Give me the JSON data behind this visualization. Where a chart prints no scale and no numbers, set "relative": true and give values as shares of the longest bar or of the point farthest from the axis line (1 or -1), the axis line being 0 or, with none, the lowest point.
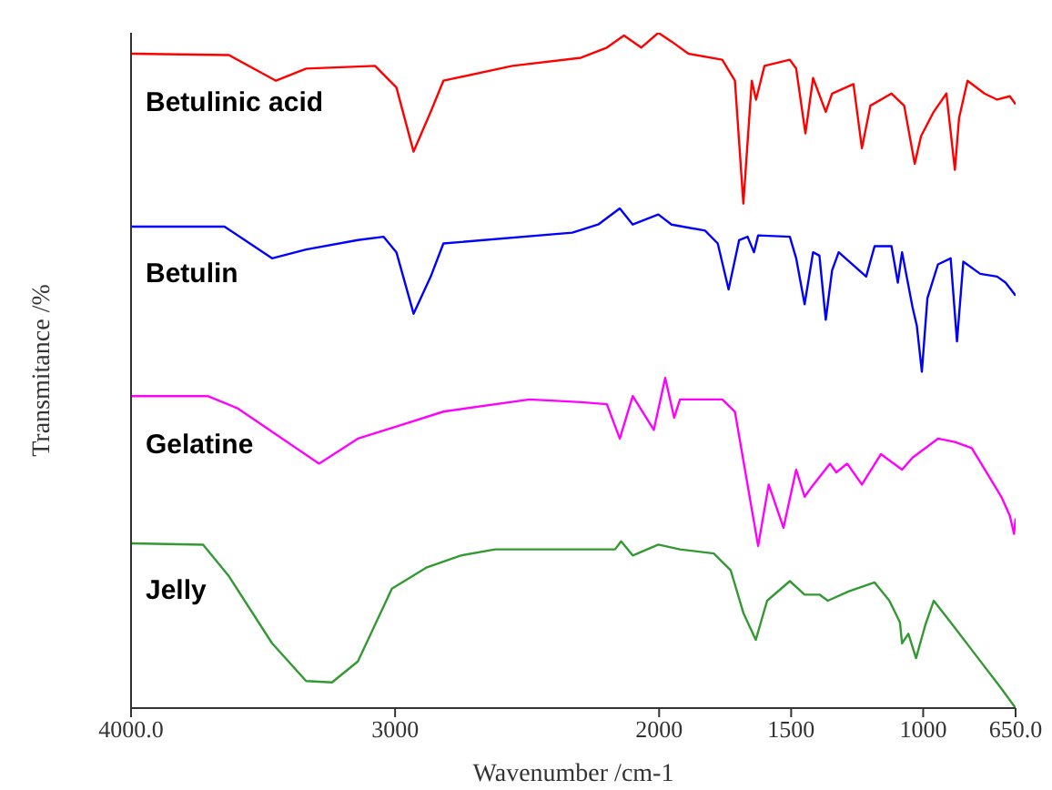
{
  "chart_data": {
    "type": "line",
    "relative": true,
    "xlabel": "Wavenumber /cm-1",
    "ylabel": "Transmitance /%",
    "xlim": [
      4000,
      650
    ],
    "xticks": [
      {
        "value": 4000,
        "label": "4000.0"
      },
      3000,
      2000,
      1500,
      1000,
      {
        "value": 650,
        "label": "650.0"
      }
    ],
    "tick_labels": "x",
    "marker": "none",
    "line_style": "solid",
    "series": [
      {
        "name": "Betulinic acid",
        "color": "#ff0000",
        "x": [
          4000,
          3629,
          3451,
          3337,
          3076,
          2995,
          2930,
          2865,
          2817,
          2556,
          2296,
          2198,
          2133,
          2068,
          2003,
          1953,
          1889,
          1761,
          1713,
          1681,
          1649,
          1633,
          1601,
          1505,
          1481,
          1446,
          1417,
          1369,
          1345,
          1264,
          1232,
          1200,
          1120,
          1072,
          1032,
          1008,
          960,
          912,
          880,
          864,
          832,
          768,
          720,
          672,
          650
        ],
        "values": [
          0.969,
          0.967,
          0.929,
          0.947,
          0.951,
          0.919,
          0.824,
          0.883,
          0.929,
          0.951,
          0.963,
          0.978,
          0.996,
          0.978,
          1.0,
          0.987,
          0.969,
          0.96,
          0.929,
          0.747,
          0.929,
          0.901,
          0.951,
          0.96,
          0.947,
          0.851,
          0.933,
          0.883,
          0.91,
          0.924,
          0.829,
          0.892,
          0.91,
          0.892,
          0.806,
          0.847,
          0.883,
          0.91,
          0.797,
          0.874,
          0.929,
          0.91,
          0.901,
          0.906,
          0.894
        ]
      },
      {
        "name": "Betulin",
        "color": "#0000ff",
        "x": [
          4000,
          3646,
          3466,
          3337,
          3141,
          3044,
          2995,
          2930,
          2865,
          2817,
          2329,
          2231,
          2149,
          2100,
          2003,
          1953,
          1826,
          1778,
          1737,
          1697,
          1665,
          1641,
          1625,
          1505,
          1481,
          1449,
          1417,
          1393,
          1369,
          1345,
          1320,
          1216,
          1184,
          1120,
          1096,
          1080,
          1040,
          1024,
          1005,
          984,
          944,
          896,
          872,
          848,
          784,
          720,
          688,
          650
        ],
        "values": [
          0.713,
          0.713,
          0.666,
          0.679,
          0.693,
          0.698,
          0.675,
          0.584,
          0.639,
          0.688,
          0.704,
          0.716,
          0.74,
          0.716,
          0.731,
          0.716,
          0.707,
          0.688,
          0.62,
          0.693,
          0.698,
          0.675,
          0.7,
          0.698,
          0.666,
          0.598,
          0.675,
          0.67,
          0.575,
          0.648,
          0.675,
          0.639,
          0.684,
          0.684,
          0.63,
          0.675,
          0.593,
          0.566,
          0.498,
          0.607,
          0.657,
          0.666,
          0.543,
          0.661,
          0.643,
          0.639,
          0.63,
          0.611
        ]
      },
      {
        "name": "Gelatine",
        "color": "#ff00ff",
        "x": [
          4000,
          3710,
          3597,
          3288,
          3141,
          2995,
          2817,
          2491,
          2296,
          2198,
          2149,
          2100,
          2020,
          1977,
          1943,
          1921,
          1761,
          1713,
          1625,
          1585,
          1529,
          1481,
          1449,
          1425,
          1353,
          1329,
          1288,
          1232,
          1160,
          1080,
          1040,
          944,
          880,
          816,
          704,
          672,
          656,
          650
        ],
        "values": [
          0.462,
          0.462,
          0.444,
          0.362,
          0.399,
          0.417,
          0.439,
          0.457,
          0.453,
          0.45,
          0.399,
          0.462,
          0.412,
          0.489,
          0.43,
          0.457,
          0.457,
          0.439,
          0.24,
          0.331,
          0.267,
          0.353,
          0.313,
          0.326,
          0.362,
          0.349,
          0.362,
          0.331,
          0.376,
          0.353,
          0.371,
          0.399,
          0.394,
          0.385,
          0.313,
          0.285,
          0.258,
          0.281
        ]
      },
      {
        "name": "Jelly",
        "color": "#339933",
        "x": [
          4000,
          3727,
          3629,
          3466,
          3337,
          3239,
          3141,
          3012,
          2882,
          2751,
          2621,
          2167,
          2144,
          2100,
          2003,
          1921,
          1793,
          1729,
          1681,
          1634,
          1591,
          1505,
          1449,
          1393,
          1361,
          1281,
          1184,
          1128,
          1088,
          1080,
          1056,
          1027,
          992,
          960,
          896,
          800,
          704,
          650
        ],
        "values": [
          0.244,
          0.242,
          0.195,
          0.096,
          0.04,
          0.038,
          0.069,
          0.177,
          0.208,
          0.226,
          0.235,
          0.235,
          0.247,
          0.226,
          0.242,
          0.235,
          0.229,
          0.204,
          0.141,
          0.101,
          0.159,
          0.188,
          0.168,
          0.168,
          0.159,
          0.173,
          0.186,
          0.159,
          0.127,
          0.096,
          0.11,
          0.074,
          0.123,
          0.159,
          0.127,
          0.078,
          0.029,
          0
        ]
      }
    ]
  }
}
